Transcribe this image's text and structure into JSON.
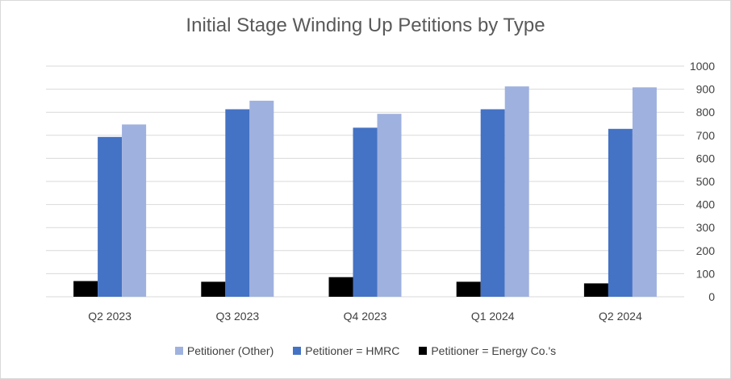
{
  "chart_data": {
    "type": "bar",
    "title": "Initial Stage Winding Up Petitions by Type",
    "categories": [
      "Q2 2023",
      "Q3 2023",
      "Q4 2023",
      "Q1 2024",
      "Q2 2024"
    ],
    "series": [
      {
        "name": "Petitioner = Energy Co.'s",
        "color": "#000000",
        "values": [
          68,
          65,
          85,
          65,
          58
        ]
      },
      {
        "name": "Petitioner = HMRC",
        "color": "#4472c4",
        "values": [
          693,
          813,
          733,
          813,
          728
        ]
      },
      {
        "name": "Petitioner (Other)",
        "color": "#9fb1de",
        "values": [
          747,
          850,
          793,
          912,
          908
        ]
      }
    ],
    "legend_order": [
      2,
      1,
      0
    ],
    "y_axis": {
      "position": "right",
      "min": 0,
      "max": 1000,
      "step": 100,
      "tick_labels": [
        "0",
        "100",
        "200",
        "300",
        "400",
        "500",
        "600",
        "700",
        "800",
        "900",
        "1000"
      ]
    },
    "grid": true,
    "legend_position": "bottom"
  }
}
